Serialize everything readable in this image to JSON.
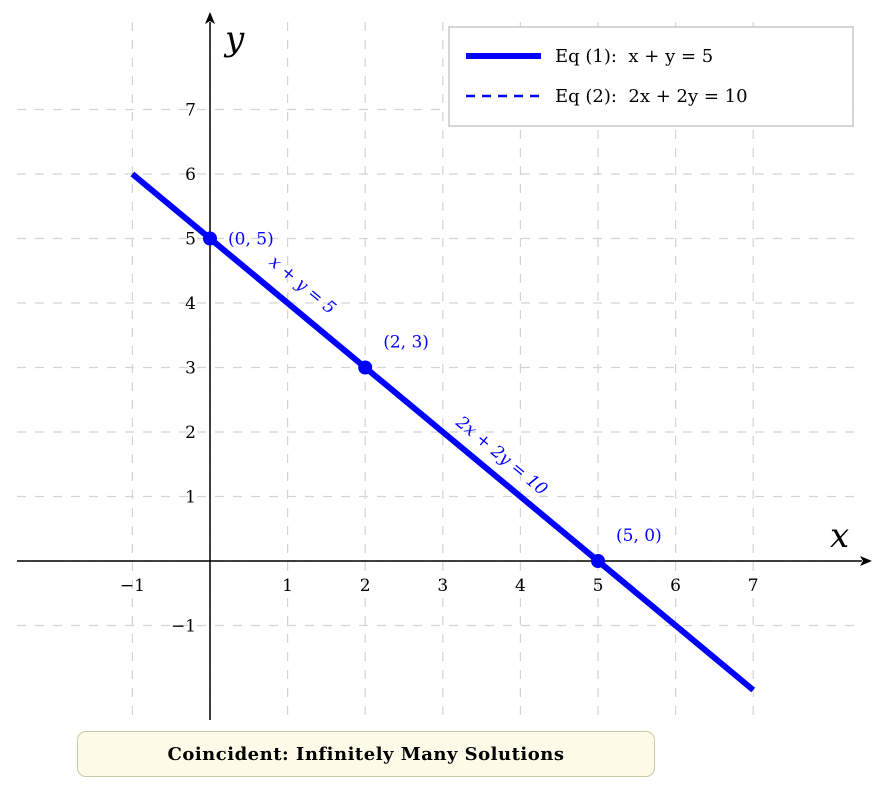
{
  "chart_data": {
    "type": "line",
    "xlabel": "x",
    "ylabel": "y",
    "xlim": [
      -2.5,
      8.5
    ],
    "ylim": [
      -2.5,
      8.5
    ],
    "x_ticks": [
      -1,
      1,
      2,
      3,
      4,
      5,
      6,
      7
    ],
    "x_tick_labels": [
      "−1",
      "1",
      "2",
      "3",
      "4",
      "5",
      "6",
      "7"
    ],
    "y_ticks": [
      -1,
      1,
      2,
      3,
      4,
      5,
      6,
      7
    ],
    "y_tick_labels": [
      "−1",
      "1",
      "2",
      "3",
      "4",
      "5",
      "6",
      "7"
    ],
    "grid": true,
    "grid_style": "dashed",
    "legend_position": "top-right",
    "series": [
      {
        "name": "Eq (1):  x + y = 5",
        "line_style": "solid",
        "color": "#0000ff",
        "x": [
          -1,
          7
        ],
        "y": [
          6,
          -2
        ]
      },
      {
        "name": "Eq (2):  2x + 2y = 10",
        "line_style": "dashed",
        "color": "#0000ff",
        "x": [
          -1,
          7
        ],
        "y": [
          6,
          -2
        ]
      }
    ],
    "points": [
      {
        "x": 0,
        "y": 5,
        "label": "(0, 5)"
      },
      {
        "x": 2,
        "y": 3,
        "label": "(2, 3)"
      },
      {
        "x": 5,
        "y": 0,
        "label": "(5, 0)"
      }
    ],
    "line_labels": [
      {
        "text": "x + y = 5",
        "x": 1,
        "y": 4
      },
      {
        "text": "2x + 2y = 10",
        "x": 3.6,
        "y": 1.4
      }
    ]
  },
  "caption": "Coincident: Infinitely Many Solutions"
}
